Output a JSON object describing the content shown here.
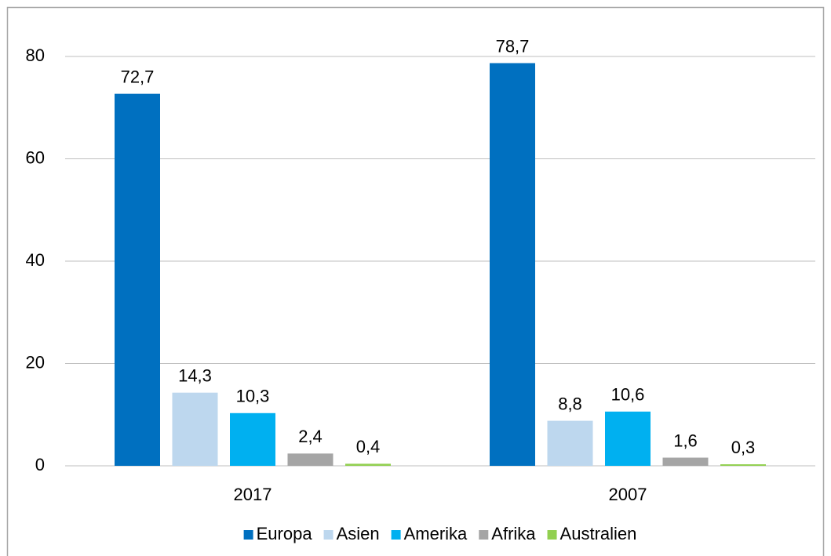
{
  "chart_data": {
    "type": "bar",
    "categories": [
      "2017",
      "2007"
    ],
    "series": [
      {
        "name": "Europa",
        "color": "#0070c0",
        "values": [
          72.7,
          78.7
        ],
        "value_labels": [
          "72,7",
          "78,7"
        ]
      },
      {
        "name": "Asien",
        "color": "#bdd7ee",
        "values": [
          14.3,
          8.8
        ],
        "value_labels": [
          "14,3",
          "8,8"
        ]
      },
      {
        "name": "Amerika",
        "color": "#00b0f0",
        "values": [
          10.3,
          10.6
        ],
        "value_labels": [
          "10,3",
          "10,6"
        ]
      },
      {
        "name": "Afrika",
        "color": "#a5a5a5",
        "values": [
          2.4,
          1.6
        ],
        "value_labels": [
          "2,4",
          "1,6"
        ]
      },
      {
        "name": "Australien",
        "color": "#92d050",
        "values": [
          0.4,
          0.3
        ],
        "value_labels": [
          "0,4",
          "0,3"
        ]
      }
    ],
    "ylim": [
      0,
      80
    ],
    "yticks": [
      0,
      20,
      40,
      60,
      80
    ],
    "grid": true,
    "legend": "bottom"
  }
}
